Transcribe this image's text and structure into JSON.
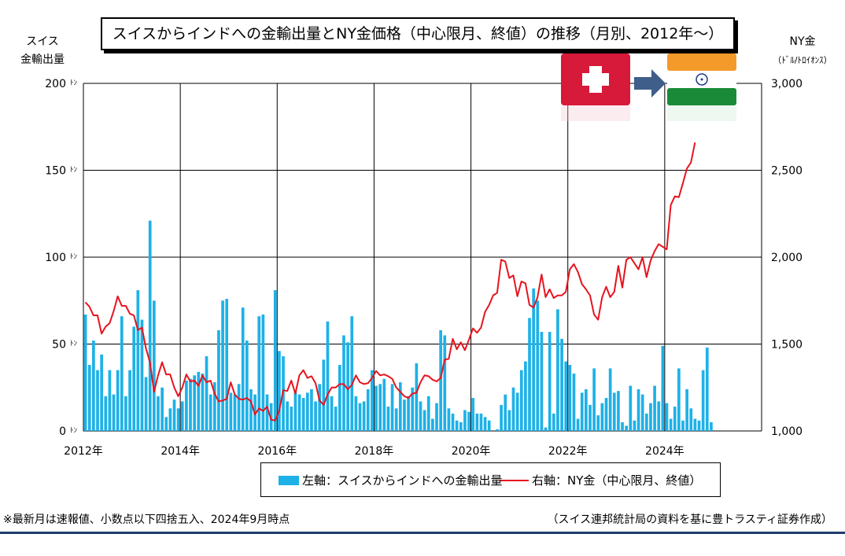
{
  "title": "スイスからインドへの金輸出量とNY金価格（中心限月、終値）の推移（月別、2012年～）",
  "left_axis_title": [
    "スイス",
    "金輸出量"
  ],
  "right_axis_title": "NY金",
  "right_axis_unit": "（ﾄﾞﾙ/ﾄﾛｲｵﾝｽ）",
  "legend": {
    "bar_label": "左軸：スイスからインドへの金輸出量",
    "line_label": "右軸：NY金（中心限月、終値）"
  },
  "footnote_left": "※最新月は速報値、小数点以下四捨五入、2024年9月時点",
  "footnote_right": "（スイス連邦統計局の資料を基に豊トラスティ証券作成）",
  "flags": [
    "swiss-flag",
    "arrow-right-icon",
    "india-flag"
  ],
  "colors": {
    "bar": "#1EB1E7",
    "line": "#E6141E",
    "footer_rule": "#1F3A6E",
    "swiss_red": "#D7193A",
    "india_saffron": "#F39A2B",
    "india_green": "#1A8A38",
    "arrow": "#3F5F8A"
  },
  "chart_data": {
    "type": "bar+line",
    "x_start": "2012-01",
    "x_tick_labels": [
      "2012年",
      "2014年",
      "2016年",
      "2018年",
      "2020年",
      "2022年",
      "2024年"
    ],
    "x_range": [
      "2012-01",
      "2025-12"
    ],
    "y_left": {
      "range": [
        0,
        200
      ],
      "tick_labels": [
        "0ﾄﾝ",
        "50ﾄﾝ",
        "100ﾄﾝ",
        "150ﾄﾝ",
        "200ﾄﾝ"
      ],
      "ticks": [
        0,
        50,
        100,
        150,
        200
      ]
    },
    "y_right": {
      "range": [
        1000,
        3000
      ],
      "tick_labels": [
        "1,000",
        "1,500",
        "2,000",
        "2,500",
        "3,000"
      ],
      "ticks": [
        1000,
        1500,
        2000,
        2500,
        3000
      ]
    },
    "grid": true,
    "series": [
      {
        "name": "左軸：スイスからインドへの金輸出量",
        "type": "bar",
        "axis": "left",
        "values": [
          67,
          38,
          52,
          35,
          44,
          20,
          35,
          21,
          35,
          66,
          20,
          35,
          60,
          81,
          64,
          31,
          121,
          75,
          20,
          25,
          8,
          13,
          18,
          13,
          17,
          29,
          30,
          32,
          34,
          33,
          43,
          21,
          28,
          58,
          75,
          76,
          22,
          21,
          27,
          71,
          52,
          24,
          21,
          66,
          67,
          21,
          16,
          81,
          46,
          43,
          17,
          14,
          23,
          21,
          19,
          22,
          24,
          17,
          27,
          41,
          63,
          20,
          14,
          38,
          55,
          51,
          66,
          20,
          16,
          17,
          24,
          35,
          26,
          27,
          30,
          14,
          27,
          13,
          28,
          18,
          20,
          25,
          39,
          17,
          12,
          20,
          7,
          16,
          58,
          55,
          13,
          10,
          6,
          5,
          12,
          11,
          19,
          10,
          10,
          8,
          6,
          0,
          1,
          15,
          21,
          12,
          25,
          22,
          35,
          40,
          65,
          82,
          75,
          57,
          2,
          57,
          10,
          70,
          53,
          40,
          38,
          33,
          7,
          22,
          24,
          15,
          36,
          9,
          16,
          19,
          36,
          22,
          23,
          5,
          3,
          26,
          6,
          24,
          21,
          10,
          16,
          26,
          17,
          49,
          16,
          7,
          14,
          36,
          6,
          24,
          13,
          7,
          6,
          35,
          48,
          5
        ]
      },
      {
        "name": "右軸：NY金（中心限月、終値）",
        "type": "line",
        "axis": "right",
        "values": [
          1740,
          1715,
          1665,
          1665,
          1560,
          1600,
          1620,
          1690,
          1775,
          1720,
          1720,
          1675,
          1665,
          1580,
          1595,
          1475,
          1395,
          1225,
          1320,
          1395,
          1325,
          1325,
          1250,
          1200,
          1250,
          1325,
          1285,
          1290,
          1260,
          1320,
          1280,
          1290,
          1215,
          1170,
          1175,
          1185,
          1280,
          1210,
          1185,
          1180,
          1190,
          1170,
          1095,
          1130,
          1115,
          1140,
          1065,
          1060,
          1115,
          1235,
          1230,
          1290,
          1215,
          1320,
          1350,
          1305,
          1315,
          1275,
          1175,
          1150,
          1210,
          1250,
          1250,
          1270,
          1270,
          1240,
          1265,
          1320,
          1280,
          1270,
          1275,
          1305,
          1345,
          1320,
          1325,
          1315,
          1300,
          1250,
          1225,
          1200,
          1190,
          1215,
          1220,
          1280,
          1320,
          1315,
          1295,
          1285,
          1305,
          1410,
          1415,
          1530,
          1470,
          1510,
          1465,
          1525,
          1590,
          1565,
          1595,
          1685,
          1725,
          1780,
          1795,
          1985,
          1975,
          1880,
          1895,
          1775,
          1860,
          1850,
          1725,
          1710,
          1770,
          1900,
          1770,
          1815,
          1765,
          1780,
          1780,
          1800,
          1930,
          1960,
          1915,
          1845,
          1815,
          1780,
          1670,
          1640,
          1770,
          1830,
          1770,
          1800,
          1950,
          1825,
          1985,
          2000,
          1965,
          1930,
          2000,
          1885,
          1980,
          2035,
          2075,
          2060,
          2045,
          2300,
          2350,
          2345,
          2425,
          2510,
          2545,
          2660
        ]
      }
    ]
  }
}
